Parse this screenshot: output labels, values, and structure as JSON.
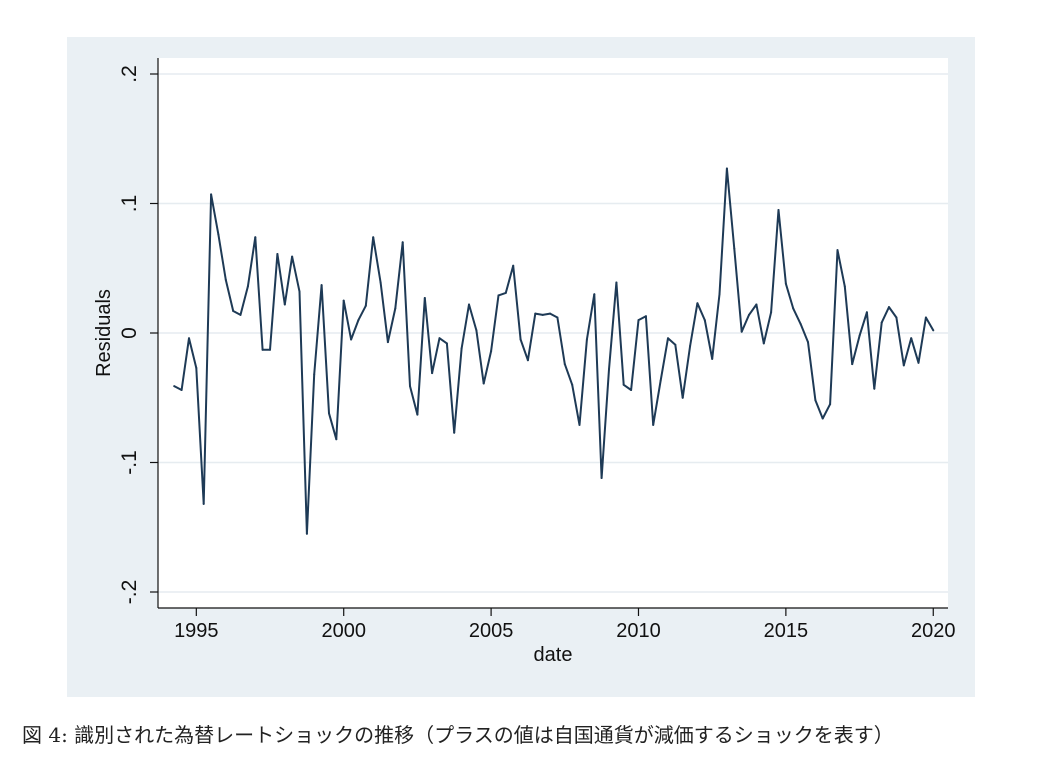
{
  "caption": "図 4: 識別された為替レートショックの推移（プラスの値は自国通貨が減価するショックを表す）",
  "chart_data": {
    "type": "line",
    "xlabel": "date",
    "ylabel": "Residuals",
    "xlim": [
      1993.7,
      2020.5
    ],
    "ylim": [
      -0.2,
      0.2
    ],
    "xticks": [
      1995,
      2000,
      2005,
      2010,
      2015,
      2020
    ],
    "xtick_labels": [
      "1995",
      "2000",
      "2005",
      "2010",
      "2015",
      "2020"
    ],
    "yticks": [
      -0.2,
      -0.1,
      0,
      0.1,
      0.2
    ],
    "ytick_labels": [
      "-.2",
      "-.1",
      "0",
      ".1",
      ".2"
    ],
    "grid": true,
    "colors": {
      "line": "#1e3a56",
      "grid": "#e6ecf0",
      "panel": "#eaf0f4",
      "plot": "#ffffff"
    },
    "series": [
      {
        "x": [
          1994.25,
          1994.5,
          1994.75,
          1995.0,
          1995.25,
          1995.5,
          1995.75,
          1996.0,
          1996.25,
          1996.5,
          1996.75,
          1997.0,
          1997.25,
          1997.5,
          1997.75,
          1998.0,
          1998.25,
          1998.5,
          1998.75,
          1999.0,
          1999.25,
          1999.5,
          1999.75,
          2000.0,
          2000.25,
          2000.5,
          2000.75,
          2001.0,
          2001.25,
          2001.5,
          2001.75,
          2002.0,
          2002.25,
          2002.5,
          2002.75,
          2003.0,
          2003.25,
          2003.5,
          2003.75,
          2004.0,
          2004.25,
          2004.5,
          2004.75,
          2005.0,
          2005.25,
          2005.5,
          2005.75,
          2006.0,
          2006.25,
          2006.5,
          2006.75,
          2007.0,
          2007.25,
          2007.5,
          2007.75,
          2008.0,
          2008.25,
          2008.5,
          2008.75,
          2009.0,
          2009.25,
          2009.5,
          2009.75,
          2010.0,
          2010.25,
          2010.5,
          2010.75,
          2011.0,
          2011.25,
          2011.5,
          2011.75,
          2012.0,
          2012.25,
          2012.5,
          2012.75,
          2013.0,
          2013.25,
          2013.5,
          2013.75,
          2014.0,
          2014.25,
          2014.5,
          2014.75,
          2015.0,
          2015.25,
          2015.5,
          2015.75,
          2016.0,
          2016.25,
          2016.5,
          2016.75,
          2017.0,
          2017.25,
          2017.5,
          2017.75,
          2018.0,
          2018.25,
          2018.5,
          2018.75,
          2019.0,
          2019.25,
          2019.5,
          2019.75,
          2020.0
        ],
        "values": [
          -0.041,
          -0.044,
          -0.004,
          -0.027,
          -0.132,
          0.107,
          0.076,
          0.041,
          0.017,
          0.014,
          0.036,
          0.074,
          -0.013,
          -0.013,
          0.061,
          0.022,
          0.059,
          0.032,
          -0.155,
          -0.032,
          0.037,
          -0.062,
          -0.082,
          0.025,
          -0.005,
          0.01,
          0.021,
          0.074,
          0.039,
          -0.007,
          0.019,
          0.07,
          -0.041,
          -0.063,
          0.027,
          -0.031,
          -0.004,
          -0.008,
          -0.077,
          -0.012,
          0.022,
          0.002,
          -0.039,
          -0.014,
          0.029,
          0.031,
          0.052,
          -0.005,
          -0.021,
          0.015,
          0.014,
          0.015,
          0.012,
          -0.024,
          -0.04,
          -0.071,
          -0.005,
          0.03,
          -0.112,
          -0.028,
          0.039,
          -0.04,
          -0.044,
          0.01,
          0.013,
          -0.071,
          -0.037,
          -0.004,
          -0.009,
          -0.05,
          -0.01,
          0.023,
          0.01,
          -0.02,
          0.03,
          0.127,
          0.065,
          0.001,
          0.014,
          0.022,
          -0.008,
          0.016,
          0.095,
          0.038,
          0.019,
          0.007,
          -0.007,
          -0.052,
          -0.066,
          -0.055,
          0.064,
          0.036,
          -0.024,
          -0.002,
          0.016,
          -0.043,
          0.008,
          0.02,
          0.012,
          -0.025,
          -0.004,
          -0.023,
          0.012,
          0.002
        ]
      }
    ]
  }
}
